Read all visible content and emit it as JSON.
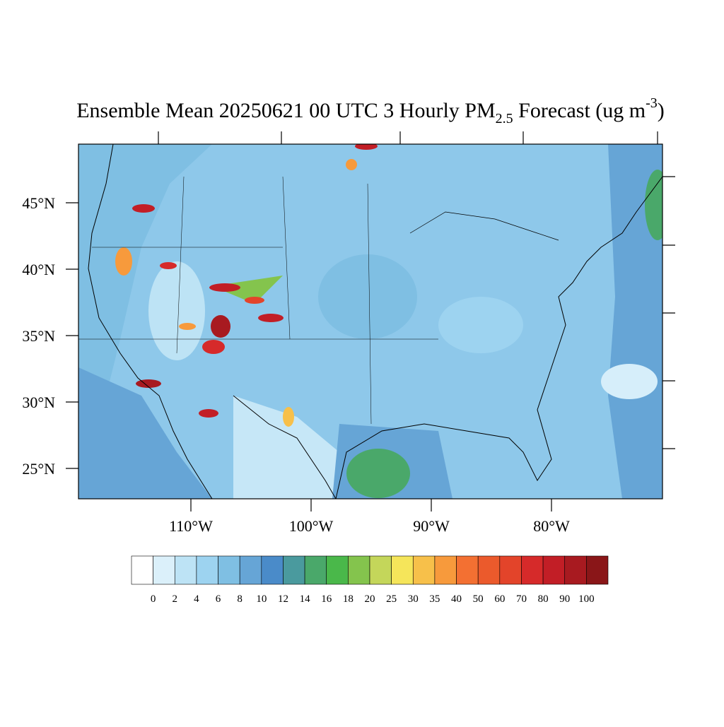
{
  "title": {
    "main": "Ensemble Mean 20250621 00 UTC 3 Hourly PM",
    "subscript": "2.5",
    "after": " Forecast (ug m",
    "superscript": "-3",
    "close": ")"
  },
  "axes": {
    "lat_labels": [
      "45°N",
      "40°N",
      "35°N",
      "30°N",
      "25°N"
    ],
    "lon_labels": [
      "110°W",
      "100°W",
      "90°W",
      "80°W"
    ]
  },
  "colorbar": {
    "levels": [
      0,
      2,
      4,
      6,
      8,
      10,
      12,
      14,
      16,
      18,
      20,
      25,
      30,
      35,
      40,
      50,
      60,
      70,
      80,
      90,
      100
    ],
    "colors": [
      "#ffffff",
      "#dbf0fa",
      "#bde3f5",
      "#9dd3f0",
      "#7fbfe3",
      "#66a5d6",
      "#4a8bc9",
      "#4a9a9e",
      "#4aa86a",
      "#4ab84a",
      "#84c44d",
      "#c4d65a",
      "#f5e55a",
      "#f7c04a",
      "#f79a3c",
      "#f37032",
      "#eb5a2c",
      "#e3442a",
      "#d62a2a",
      "#c21e26",
      "#a81a20",
      "#8a1618"
    ]
  }
}
